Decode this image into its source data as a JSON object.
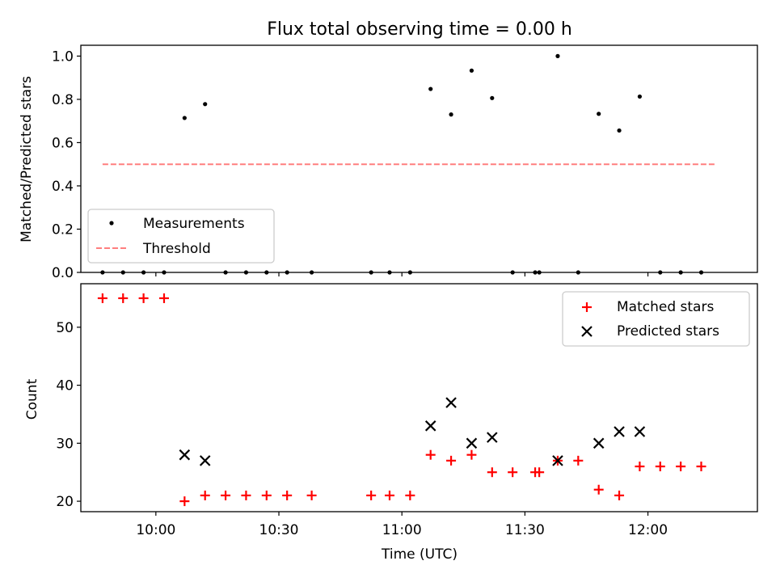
{
  "chart_data": {
    "title": "Flux total observing time = 0.00 h",
    "xlabel": "Time (UTC)",
    "x_unit": "minutes since 09:00 UTC",
    "xlim": [
      41.7,
      206.7
    ],
    "xticks": [
      {
        "value": 60,
        "label": "10:00"
      },
      {
        "value": 90,
        "label": "10:30"
      },
      {
        "value": 120,
        "label": "11:00"
      },
      {
        "value": 150,
        "label": "11:30"
      },
      {
        "value": 180,
        "label": "12:00"
      }
    ],
    "panels": [
      {
        "id": "ratio",
        "type": "scatter",
        "ylabel": "Matched/Predicted stars",
        "ylim": [
          0,
          1.05
        ],
        "yticks": [
          {
            "value": 0.0,
            "label": "0.0"
          },
          {
            "value": 0.2,
            "label": "0.2"
          },
          {
            "value": 0.4,
            "label": "0.4"
          },
          {
            "value": 0.6,
            "label": "0.6"
          },
          {
            "value": 0.8,
            "label": "0.8"
          },
          {
            "value": 1.0,
            "label": "1.0"
          }
        ],
        "legend": {
          "position": "lower-left",
          "entries": [
            "Measurements",
            "Threshold"
          ]
        },
        "series": [
          {
            "name": "Measurements",
            "marker": "dot",
            "color": "#000000",
            "x": [
              47,
              52,
              57,
              62,
              67,
              72,
              77,
              82,
              87,
              92,
              98,
              112.5,
              117,
              122,
              127,
              132,
              137,
              142,
              147,
              152.5,
              153.5,
              158,
              163,
              168,
              173,
              178,
              183,
              188,
              193
            ],
            "y": [
              0,
              0,
              0,
              0,
              0.714,
              0.778,
              0,
              0,
              0,
              0,
              0,
              0,
              0,
              0,
              0.848,
              0.73,
              0.933,
              0.806,
              0,
              0,
              0,
              1.0,
              0,
              0.733,
              0.656,
              0.813,
              0,
              0,
              0
            ]
          },
          {
            "name": "Threshold",
            "marker": "dashed-line",
            "color": "#ff7f7f",
            "x": [
              47,
              196.7
            ],
            "y": [
              0.5,
              0.5
            ]
          }
        ]
      },
      {
        "id": "counts",
        "type": "scatter",
        "ylabel": "Count",
        "ylim": [
          18.2,
          57.5
        ],
        "yticks": [
          {
            "value": 20,
            "label": "20"
          },
          {
            "value": 30,
            "label": "30"
          },
          {
            "value": 40,
            "label": "40"
          },
          {
            "value": 50,
            "label": "50"
          }
        ],
        "legend": {
          "position": "upper-right",
          "entries": [
            "Matched stars",
            "Predicted stars"
          ]
        },
        "series": [
          {
            "name": "Matched stars",
            "marker": "plus",
            "color": "#ff0000",
            "x": [
              47,
              52,
              57,
              62,
              67,
              72,
              77,
              82,
              87,
              92,
              98,
              112.5,
              117,
              122,
              127,
              132,
              137,
              142,
              147,
              152.5,
              153.5,
              158,
              163,
              168,
              173,
              178,
              183,
              188,
              193
            ],
            "y": [
              55,
              55,
              55,
              55,
              20,
              21,
              21,
              21,
              21,
              21,
              21,
              21,
              21,
              21,
              28,
              27,
              28,
              25,
              25,
              25,
              25,
              27,
              27,
              22,
              21,
              26,
              26,
              26,
              26
            ]
          },
          {
            "name": "Predicted stars",
            "marker": "x",
            "color": "#000000",
            "x": [
              67,
              72,
              127,
              132,
              137,
              142,
              158,
              168,
              173,
              178
            ],
            "y": [
              28,
              27,
              33,
              37,
              30,
              31,
              27,
              30,
              32,
              32
            ]
          }
        ]
      }
    ]
  }
}
